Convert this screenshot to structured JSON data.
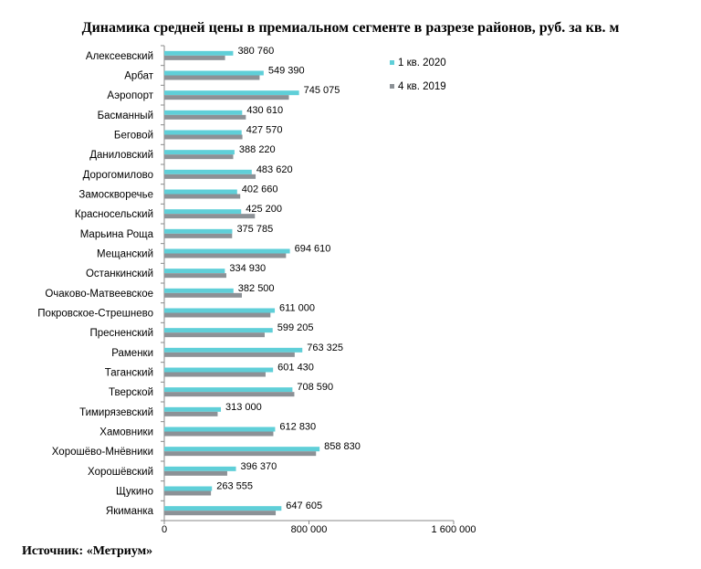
{
  "chart_data": {
    "type": "bar",
    "orientation": "horizontal",
    "title": "Динамика средней цены в премиальном сегменте в разрезе районов, руб. за кв. м",
    "source": "Источник: «Метриум»",
    "categories": [
      "Алексеевский",
      "Арбат",
      "Аэропорт",
      "Басманный",
      "Беговой",
      "Даниловский",
      "Дорогомилово",
      "Замоскворечье",
      "Красносельский",
      "Марьина Роща",
      "Мещанский",
      "Останкинский",
      "Очаково-Матвеевское",
      "Покровское-Стрешнево",
      "Пресненский",
      "Раменки",
      "Таганский",
      "Тверской",
      "Тимирязевский",
      "Хамовники",
      "Хорошёво-Мнёвники",
      "Хорошёвский",
      "Щукино",
      "Якиманка"
    ],
    "series": [
      {
        "name": "1 кв. 2020",
        "color": "#5fcfd8",
        "values": [
          380760,
          549390,
          745075,
          430610,
          427570,
          388220,
          483620,
          402660,
          425200,
          375785,
          694610,
          334930,
          382500,
          611000,
          599205,
          763325,
          601430,
          708590,
          313000,
          612830,
          858830,
          396370,
          263555,
          647605
        ],
        "labels": [
          "380 760",
          "549 390",
          "745 075",
          "430 610",
          "427 570",
          "388 220",
          "483 620",
          "402 660",
          "425 200",
          "375 785",
          "694 610",
          "334 930",
          "382 500",
          "611 000",
          "599 205",
          "763 325",
          "601 430",
          "708 590",
          "313 000",
          "612 830",
          "858 830",
          "396 370",
          "263 555",
          "647 605"
        ]
      },
      {
        "name": "4 кв. 2019",
        "color": "#8c9196",
        "values": [
          336000,
          527000,
          689000,
          451000,
          432000,
          381000,
          505000,
          420000,
          501000,
          375000,
          673000,
          343000,
          429000,
          587000,
          555000,
          721000,
          560000,
          719000,
          295000,
          603000,
          839000,
          348000,
          258000,
          616000
        ]
      }
    ],
    "xlim": [
      0,
      1600000
    ],
    "xticks": [
      0,
      800000,
      1600000
    ],
    "xtick_labels": [
      "0",
      "800 000",
      "1 600 000"
    ],
    "legend": "top-right",
    "grid": false
  }
}
